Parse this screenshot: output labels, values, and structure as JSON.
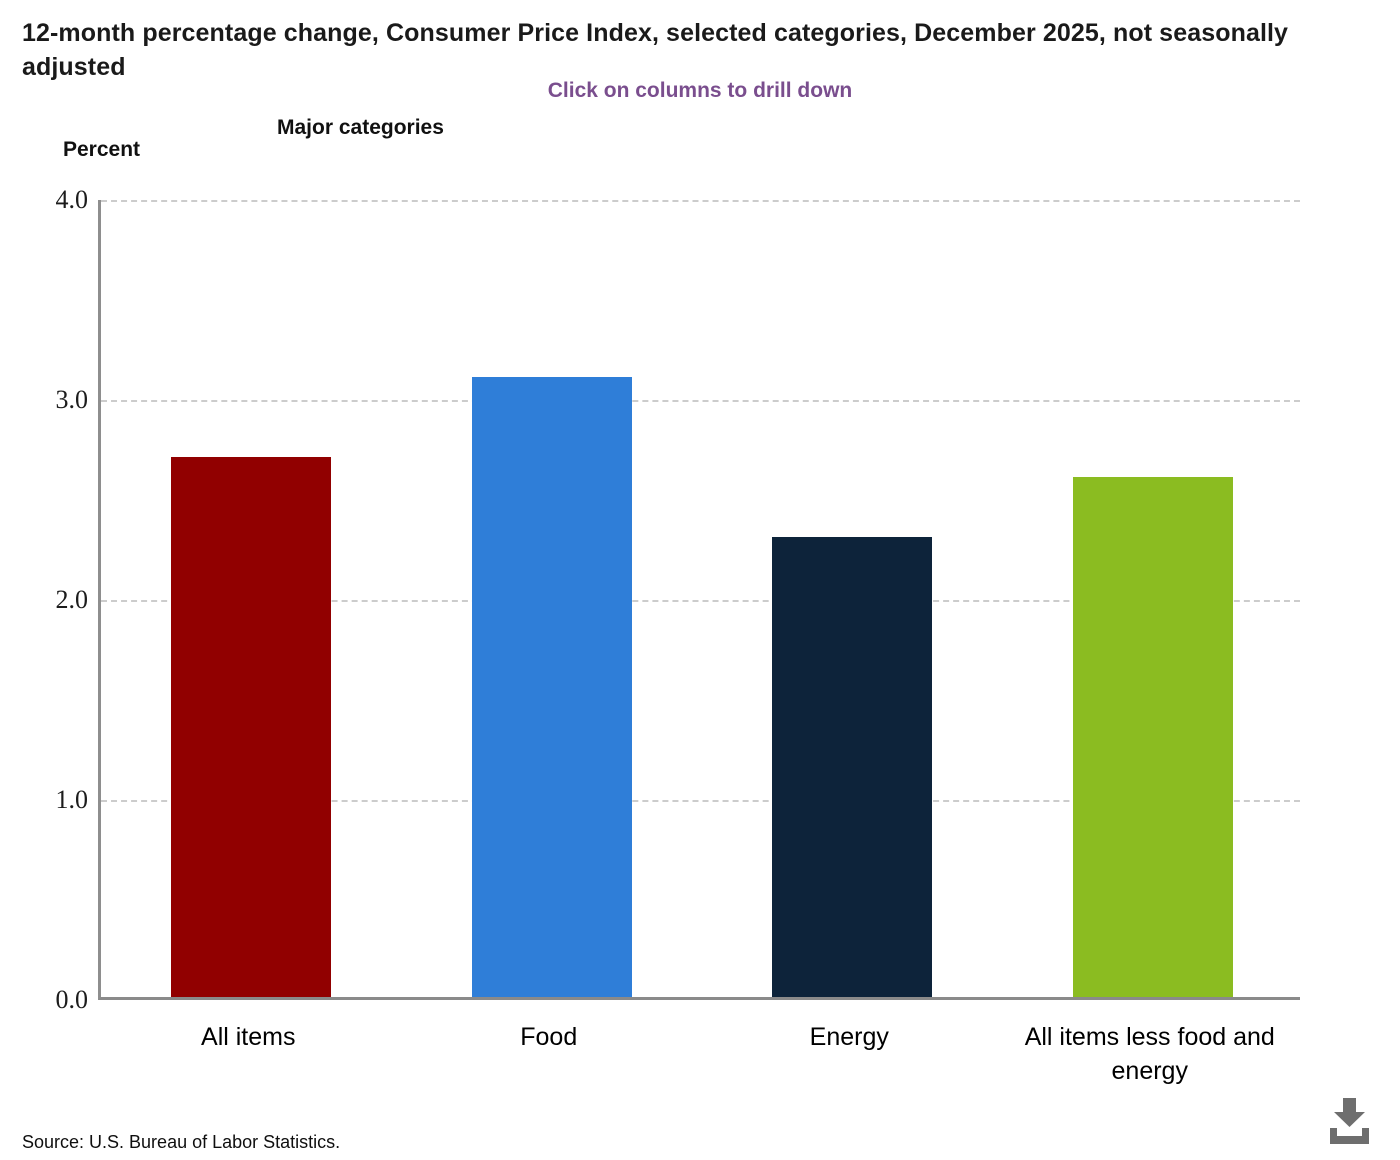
{
  "page": {
    "source": "Source: U.S. Bureau of Labor Statistics.",
    "subtitle_color": "#7a4e8e",
    "axis_color": "#8e8e8e",
    "gridline_color": "#cccccc",
    "download_icon_color": "#6e6e6e"
  },
  "chart_data": {
    "type": "bar",
    "title": "12-month percentage change, Consumer Price Index, selected categories, December 2025, not seasonally adjusted",
    "subtitle": "Click on columns to drill down",
    "xlabel": "Major categories",
    "ylabel": "Percent",
    "categories": [
      "All items",
      "Food",
      "Energy",
      "All items less food and energy"
    ],
    "values": [
      2.7,
      3.1,
      2.3,
      2.6
    ],
    "colors": [
      "#910000",
      "#2f7ed8",
      "#0d233a",
      "#8bbc21"
    ],
    "ylim": [
      0,
      4
    ],
    "yticks": [
      {
        "value": 4.0,
        "label": "4.0"
      },
      {
        "value": 3.0,
        "label": "3.0"
      },
      {
        "value": 2.0,
        "label": "2.0"
      },
      {
        "value": 1.0,
        "label": "1.0"
      },
      {
        "value": 0.0,
        "label": "0.0"
      }
    ],
    "grid": "horizontal-dashed",
    "legend": "none"
  }
}
